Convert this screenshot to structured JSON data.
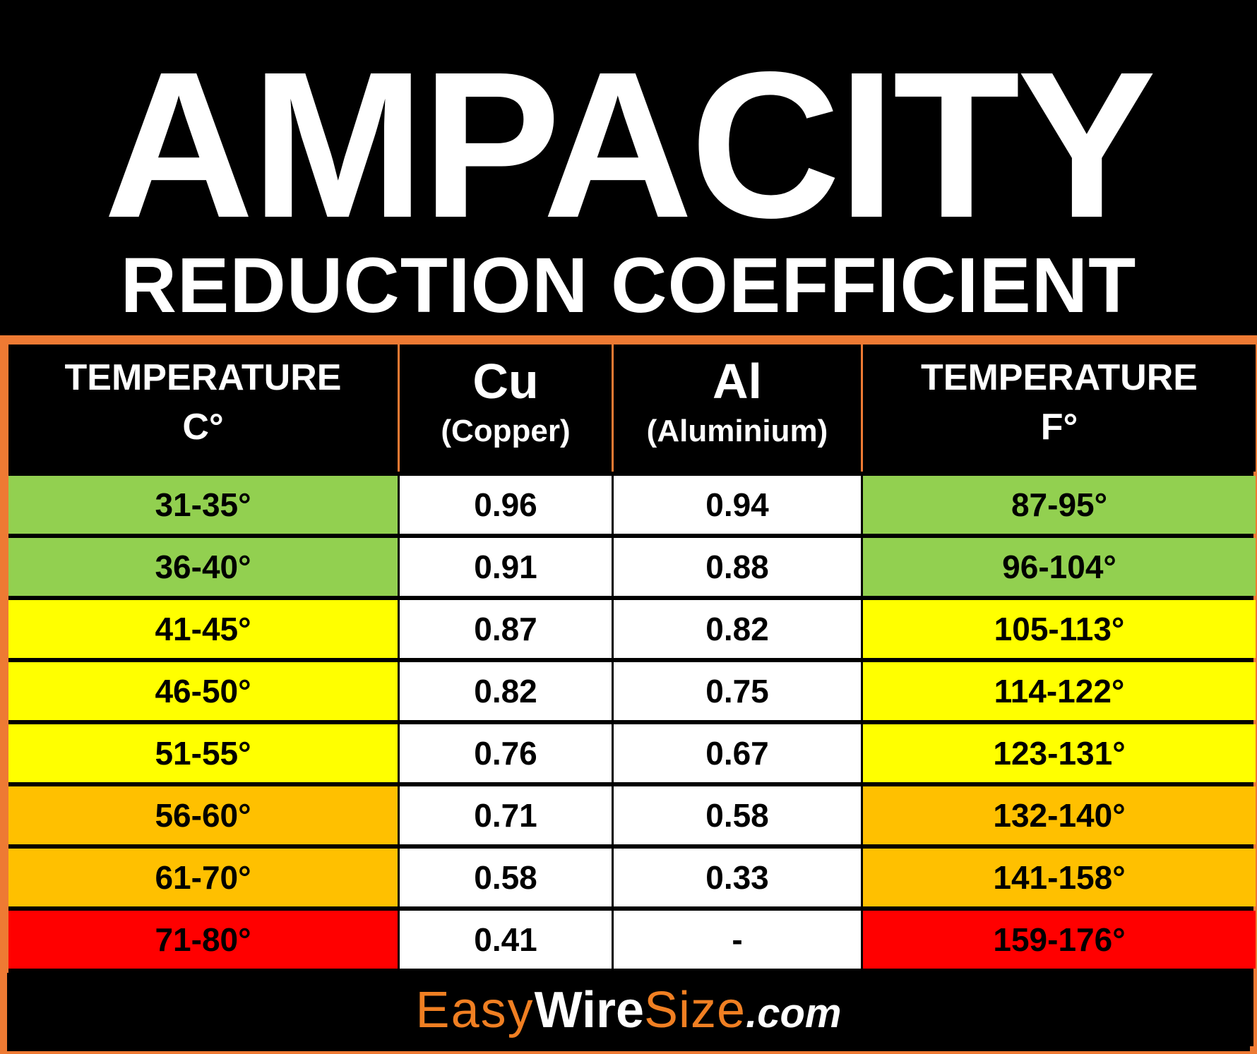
{
  "title": "AMPACITY",
  "subtitle": "REDUCTION COEFFICIENT",
  "colors": {
    "accent_border": "#ee7a33",
    "green": "#92d050",
    "yellow": "#ffff00",
    "orange": "#ffc000",
    "red": "#ff0000",
    "white": "#ffffff"
  },
  "table": {
    "headers": [
      {
        "line1": "TEMPERATURE",
        "line2": "C°"
      },
      {
        "line1": "Cu",
        "line2": "(Copper)"
      },
      {
        "line1": "Al",
        "line2": "(Aluminium)"
      },
      {
        "line1": "TEMPERATURE",
        "line2": "F°"
      }
    ],
    "rows": [
      {
        "c": "31-35°",
        "cu": "0.96",
        "al": "0.94",
        "f": "87-95°",
        "band": "green"
      },
      {
        "c": "36-40°",
        "cu": "0.91",
        "al": "0.88",
        "f": "96-104°",
        "band": "green"
      },
      {
        "c": "41-45°",
        "cu": "0.87",
        "al": "0.82",
        "f": "105-113°",
        "band": "yellow"
      },
      {
        "c": "46-50°",
        "cu": "0.82",
        "al": "0.75",
        "f": "114-122°",
        "band": "yellow"
      },
      {
        "c": "51-55°",
        "cu": "0.76",
        "al": "0.67",
        "f": "123-131°",
        "band": "yellow"
      },
      {
        "c": "56-60°",
        "cu": "0.71",
        "al": "0.58",
        "f": "132-140°",
        "band": "orange"
      },
      {
        "c": "61-70°",
        "cu": "0.58",
        "al": "0.33",
        "f": "141-158°",
        "band": "orange"
      },
      {
        "c": "71-80°",
        "cu": "0.41",
        "al": "-",
        "f": "159-176°",
        "band": "red"
      }
    ]
  },
  "footer": {
    "logo_easy": "Easy",
    "logo_wire": "Wire",
    "logo_size": "Size",
    "logo_tld": ".com"
  }
}
